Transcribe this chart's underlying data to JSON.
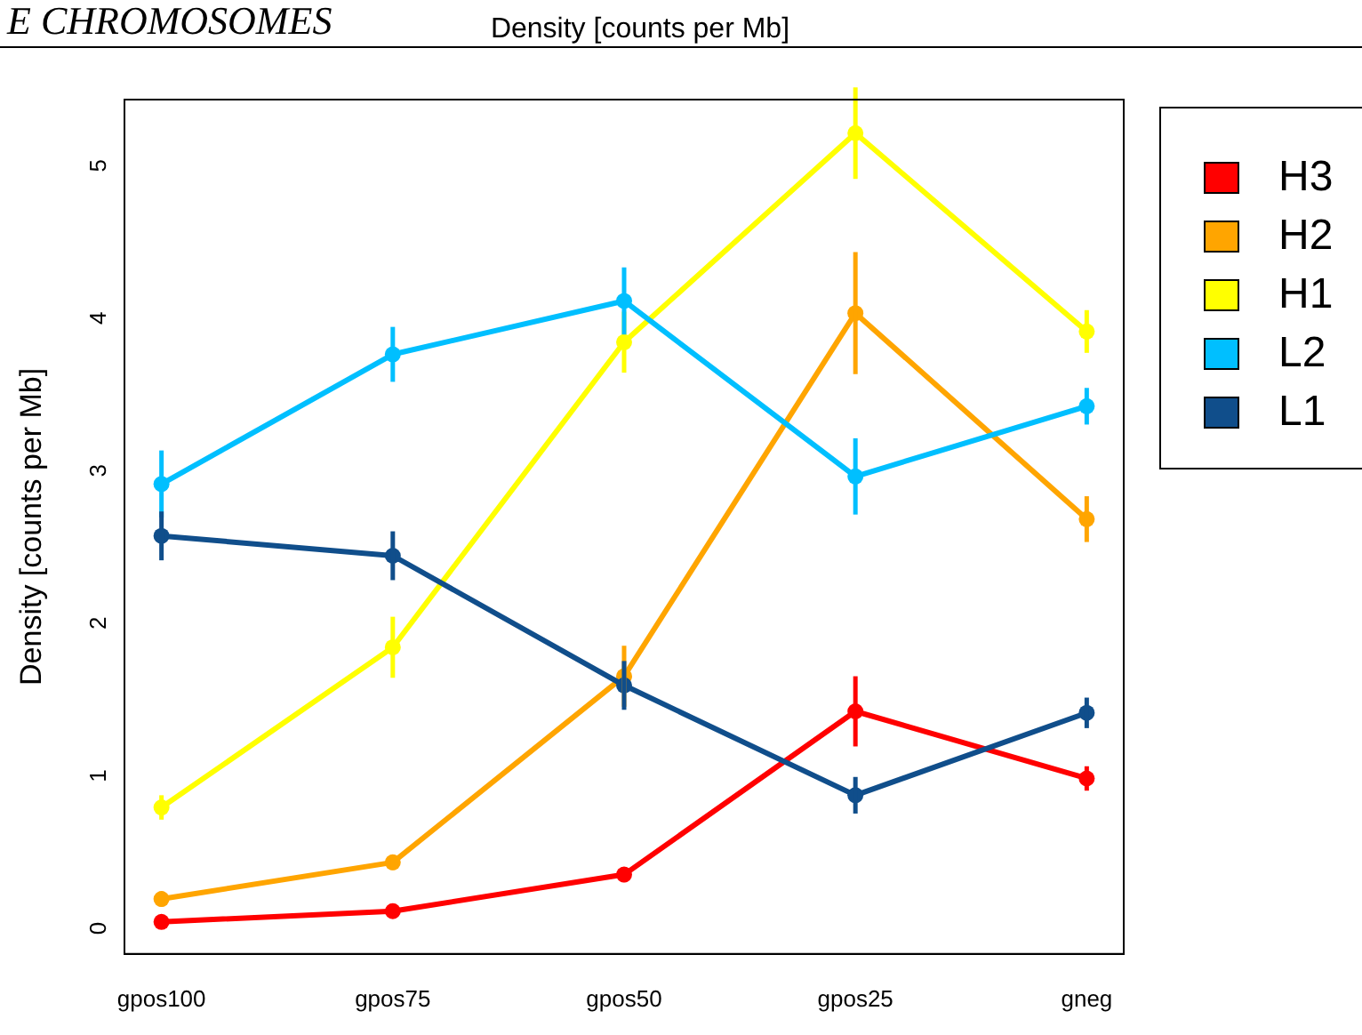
{
  "chart_data": {
    "type": "line",
    "title": "Density [counts per Mb]",
    "ylabel": "Density [counts per Mb]",
    "annotations": [
      "E CHROMOSOMES"
    ],
    "categories": [
      "gpos100",
      "gpos75",
      "gpos50",
      "gpos25",
      "gneg"
    ],
    "series": [
      {
        "name": "H3",
        "color": "#ff0000",
        "values": [
          0.0,
          0.07,
          0.31,
          1.38,
          0.94
        ],
        "errors": [
          0.03,
          0.04,
          0.05,
          0.23,
          0.08
        ]
      },
      {
        "name": "H2",
        "color": "#ffa500",
        "values": [
          0.15,
          0.39,
          1.61,
          3.99,
          2.64
        ],
        "errors": [
          0.05,
          0.05,
          0.2,
          0.4,
          0.15
        ]
      },
      {
        "name": "H1",
        "color": "#ffff00",
        "values": [
          0.75,
          1.8,
          3.8,
          5.17,
          3.87
        ],
        "errors": [
          0.08,
          0.2,
          0.2,
          0.3,
          0.14
        ]
      },
      {
        "name": "L2",
        "color": "#00bfff",
        "values": [
          2.87,
          3.72,
          4.07,
          2.92,
          3.38
        ],
        "errors": [
          0.22,
          0.18,
          0.22,
          0.25,
          0.12
        ]
      },
      {
        "name": "L1",
        "color": "#104e8b",
        "values": [
          2.53,
          2.4,
          1.55,
          0.83,
          1.37
        ],
        "errors": [
          0.16,
          0.16,
          0.16,
          0.12,
          0.1
        ]
      }
    ],
    "ylim": [
      -0.21,
      5.39
    ],
    "yticks": [
      0,
      1,
      2,
      3,
      4,
      5
    ],
    "grid": false,
    "legend": "top right",
    "marker": "circle",
    "line_style": "solid"
  }
}
